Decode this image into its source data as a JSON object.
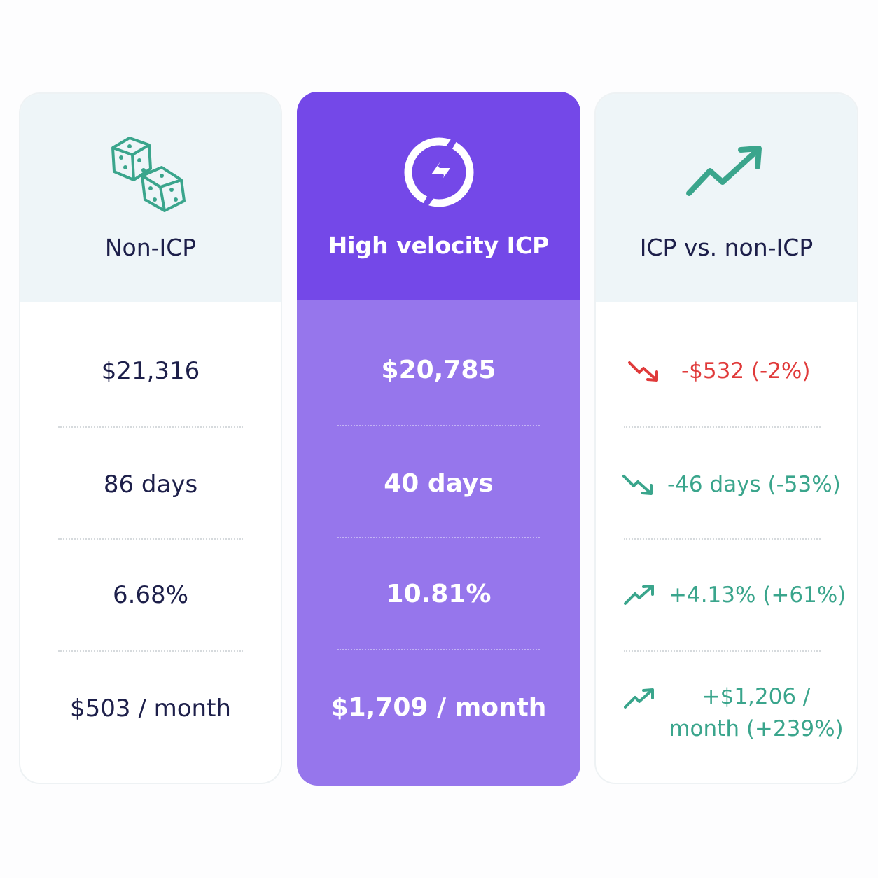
{
  "columns": [
    {
      "title": "Non-ICP",
      "rows": [
        "$21,316",
        "86 days",
        "6.68%",
        "$503 / month"
      ]
    },
    {
      "title": "High velocity ICP",
      "rows": [
        "$20,785",
        "40 days",
        "10.81%",
        "$1,709 / month"
      ]
    },
    {
      "title": "ICP vs. non-ICP",
      "rows": [
        "-$532 (-2%)",
        "-46 days (-53%)",
        "+4.13% (+61%)",
        "+$1,206 / month (+239%)"
      ]
    }
  ]
}
